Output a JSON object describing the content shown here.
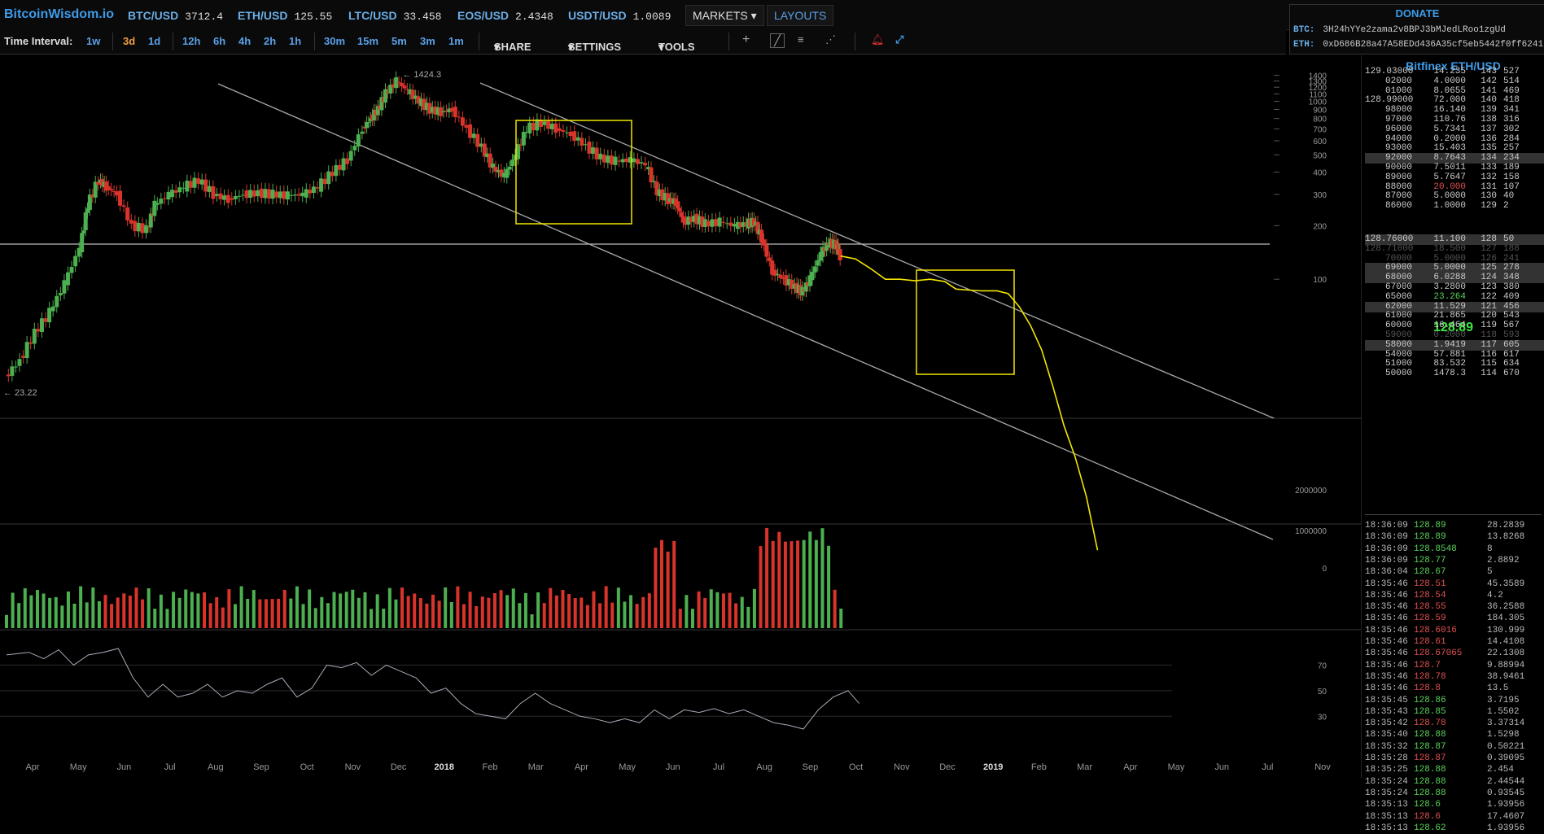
{
  "header": {
    "logo": "BitcoinWisdom.io",
    "tickers": [
      {
        "symbol": "BTC/USD",
        "price": "3712.4"
      },
      {
        "symbol": "ETH/USD",
        "price": "125.55"
      },
      {
        "symbol": "LTC/USD",
        "price": "33.458"
      },
      {
        "symbol": "EOS/USD",
        "price": "2.4348"
      },
      {
        "symbol": "USDT/USD",
        "price": "1.0089"
      }
    ],
    "markets_label": "MARKETS",
    "layouts_label": "LAYOUTS"
  },
  "donate": {
    "title": "DONATE",
    "btc_label": "BTC:",
    "btc_address": "3H24hYYe2zama2v8BPJ3bMJedLRoo1zgUd",
    "eth_label": "ETH:",
    "eth_address": "0xD686B28a47A58EDd436A35cf5eb5442f0ff6241"
  },
  "toolbar": {
    "time_interval_label": "Time Interval:",
    "intervals": [
      "1w",
      "3d",
      "1d",
      "12h",
      "6h",
      "4h",
      "2h",
      "1h",
      "30m",
      "15m",
      "5m",
      "3m",
      "1m"
    ],
    "active_interval": "3d",
    "share_label": "SHARE",
    "settings_label": "SETTINGS",
    "tools_label": "TOOLS"
  },
  "chart_data": {
    "type": "candlestick",
    "scale": "log",
    "high_label": "1424.3",
    "low_label": "23.22",
    "price_ticks": [
      "1400",
      "1300",
      "1200",
      "1100",
      "1000",
      "900",
      "800",
      "700",
      "600",
      "500",
      "400",
      "300",
      "200",
      "100"
    ],
    "volume_ticks": [
      "2000000",
      "1000000",
      "0"
    ],
    "rsi_ticks": [
      "70",
      "50",
      "30"
    ],
    "x_labels": [
      "Apr",
      "May",
      "Jun",
      "Jul",
      "Aug",
      "Sep",
      "Oct",
      "Nov",
      "Dec",
      "2018",
      "Feb",
      "Mar",
      "Apr",
      "May",
      "Jun",
      "Jul",
      "Aug",
      "Sep",
      "Oct",
      "Nov",
      "Dec",
      "2019",
      "Feb",
      "Mar",
      "Apr",
      "May",
      "Jun",
      "Jul",
      "Nov"
    ],
    "price_path": [
      [
        0.0,
        28
      ],
      [
        0.2,
        35
      ],
      [
        0.4,
        50
      ],
      [
        0.6,
        65
      ],
      [
        0.8,
        95
      ],
      [
        1.0,
        150
      ],
      [
        1.1,
        260
      ],
      [
        1.25,
        360
      ],
      [
        1.35,
        330
      ],
      [
        1.5,
        300
      ],
      [
        1.7,
        200
      ],
      [
        1.9,
        190
      ],
      [
        2.0,
        260
      ],
      [
        2.2,
        300
      ],
      [
        2.4,
        330
      ],
      [
        2.6,
        360
      ],
      [
        2.8,
        300
      ],
      [
        3.0,
        280
      ],
      [
        3.2,
        300
      ],
      [
        3.4,
        305
      ],
      [
        3.6,
        300
      ],
      [
        3.8,
        295
      ],
      [
        4.0,
        300
      ],
      [
        4.2,
        330
      ],
      [
        4.4,
        400
      ],
      [
        4.6,
        470
      ],
      [
        4.8,
        700
      ],
      [
        4.9,
        800
      ],
      [
        5.0,
        900
      ],
      [
        5.1,
        1100
      ],
      [
        5.25,
        1300
      ],
      [
        5.4,
        1150
      ],
      [
        5.55,
        1000
      ],
      [
        5.7,
        900
      ],
      [
        5.85,
        870
      ],
      [
        6.0,
        900
      ],
      [
        6.2,
        700
      ],
      [
        6.4,
        550
      ],
      [
        6.55,
        420
      ],
      [
        6.7,
        380
      ],
      [
        6.85,
        500
      ],
      [
        7.0,
        700
      ],
      [
        7.2,
        760
      ],
      [
        7.4,
        700
      ],
      [
        7.6,
        650
      ],
      [
        7.8,
        560
      ],
      [
        8.0,
        480
      ],
      [
        8.2,
        460
      ],
      [
        8.4,
        470
      ],
      [
        8.6,
        440
      ],
      [
        8.75,
        310
      ],
      [
        8.9,
        280
      ],
      [
        9.0,
        270
      ],
      [
        9.1,
        210
      ],
      [
        9.25,
        220
      ],
      [
        9.4,
        205
      ],
      [
        9.6,
        210
      ],
      [
        9.8,
        200
      ],
      [
        9.95,
        205
      ],
      [
        10.05,
        210
      ],
      [
        10.15,
        170
      ],
      [
        10.3,
        110
      ],
      [
        10.45,
        100
      ],
      [
        10.6,
        90
      ],
      [
        10.7,
        85
      ],
      [
        10.8,
        100
      ],
      [
        10.95,
        140
      ],
      [
        11.05,
        160
      ],
      [
        11.15,
        155
      ],
      [
        11.2,
        135
      ]
    ],
    "projection_path": [
      [
        11.2,
        135
      ],
      [
        11.4,
        130
      ],
      [
        11.6,
        115
      ],
      [
        11.8,
        100
      ],
      [
        12.0,
        100
      ],
      [
        12.2,
        98
      ],
      [
        12.4,
        100
      ],
      [
        12.6,
        97
      ],
      [
        12.75,
        88
      ],
      [
        12.9,
        87
      ],
      [
        13.1,
        86
      ],
      [
        13.3,
        86
      ],
      [
        13.45,
        83
      ],
      [
        13.6,
        70
      ],
      [
        13.75,
        55
      ],
      [
        13.9,
        40
      ],
      [
        14.05,
        25
      ],
      [
        14.2,
        15
      ],
      [
        14.35,
        10
      ],
      [
        14.5,
        6
      ],
      [
        14.65,
        3
      ]
    ],
    "rsi_path": [
      [
        0,
        78
      ],
      [
        0.3,
        80
      ],
      [
        0.5,
        75
      ],
      [
        0.7,
        82
      ],
      [
        0.9,
        70
      ],
      [
        1.1,
        78
      ],
      [
        1.3,
        80
      ],
      [
        1.5,
        83
      ],
      [
        1.7,
        60
      ],
      [
        1.9,
        45
      ],
      [
        2.1,
        55
      ],
      [
        2.3,
        45
      ],
      [
        2.5,
        48
      ],
      [
        2.7,
        55
      ],
      [
        2.9,
        45
      ],
      [
        3.1,
        50
      ],
      [
        3.3,
        48
      ],
      [
        3.5,
        55
      ],
      [
        3.7,
        60
      ],
      [
        3.9,
        45
      ],
      [
        4.1,
        52
      ],
      [
        4.3,
        70
      ],
      [
        4.5,
        68
      ],
      [
        4.7,
        72
      ],
      [
        4.9,
        62
      ],
      [
        5.1,
        70
      ],
      [
        5.3,
        65
      ],
      [
        5.5,
        60
      ],
      [
        5.7,
        48
      ],
      [
        5.9,
        52
      ],
      [
        6.1,
        40
      ],
      [
        6.3,
        32
      ],
      [
        6.5,
        30
      ],
      [
        6.7,
        28
      ],
      [
        6.9,
        40
      ],
      [
        7.1,
        48
      ],
      [
        7.3,
        40
      ],
      [
        7.5,
        35
      ],
      [
        7.7,
        30
      ],
      [
        7.9,
        28
      ],
      [
        8.1,
        25
      ],
      [
        8.3,
        28
      ],
      [
        8.5,
        25
      ],
      [
        8.7,
        35
      ],
      [
        8.9,
        28
      ],
      [
        9.1,
        35
      ],
      [
        9.3,
        33
      ],
      [
        9.5,
        36
      ],
      [
        9.7,
        32
      ],
      [
        9.9,
        35
      ],
      [
        10.1,
        30
      ],
      [
        10.3,
        25
      ],
      [
        10.5,
        23
      ],
      [
        10.7,
        20
      ],
      [
        10.9,
        35
      ],
      [
        11.1,
        45
      ],
      [
        11.3,
        50
      ],
      [
        11.45,
        40
      ]
    ]
  },
  "orderbook": {
    "title": "Bitfinex ETH/USD",
    "asks": [
      [
        "129.03000",
        "14.235",
        "143",
        "527"
      ],
      [
        "02000",
        "4.0000",
        "142",
        "514"
      ],
      [
        "01000",
        "8.0655",
        "141",
        "469"
      ],
      [
        "128.99000",
        "72.000",
        "140",
        "418"
      ],
      [
        "98000",
        "16.140",
        "139",
        "341"
      ],
      [
        "97000",
        "110.76",
        "138",
        "316"
      ],
      [
        "96000",
        "5.7341",
        "137",
        "302"
      ],
      [
        "94000",
        "0.2000",
        "136",
        "284"
      ],
      [
        "93000",
        "15.403",
        "135",
        "257"
      ],
      [
        "92000",
        "8.7643",
        "134",
        "234"
      ],
      [
        "90000",
        "7.5011",
        "133",
        "189"
      ],
      [
        "89000",
        "5.7647",
        "132",
        "158"
      ],
      [
        "88000",
        "20.000",
        "131",
        "107"
      ],
      [
        "87000",
        "5.0000",
        "130",
        "40"
      ],
      [
        "86000",
        "1.0000",
        "129",
        "2"
      ]
    ],
    "last_price": "128.89",
    "bids": [
      [
        "128.76000",
        "11.100",
        "128",
        "50"
      ],
      [
        "128.71000",
        "18.500",
        "127",
        "188"
      ],
      [
        "70000",
        "5.0000",
        "126",
        "241"
      ],
      [
        "69000",
        "5.0000",
        "125",
        "278"
      ],
      [
        "68000",
        "6.0288",
        "124",
        "348"
      ],
      [
        "67000",
        "3.2800",
        "123",
        "380"
      ],
      [
        "65000",
        "23.264",
        "122",
        "409"
      ],
      [
        "62000",
        "11.529",
        "121",
        "456"
      ],
      [
        "61000",
        "21.865",
        "120",
        "543"
      ],
      [
        "60000",
        "16.464",
        "119",
        "567"
      ],
      [
        "59000",
        "0.2000",
        "118",
        "593"
      ],
      [
        "58000",
        "1.9419",
        "117",
        "605"
      ],
      [
        "54000",
        "57.881",
        "116",
        "617"
      ],
      [
        "51000",
        "83.532",
        "115",
        "634"
      ],
      [
        "50000",
        "1478.3",
        "114",
        "670"
      ]
    ],
    "trades": [
      [
        "18:36:09",
        "128.89",
        "28.2839"
      ],
      [
        "18:36:09",
        "128.89",
        "13.8268"
      ],
      [
        "18:36:09",
        "128.8548",
        "8"
      ],
      [
        "18:36:09",
        "128.77",
        "2.8892"
      ],
      [
        "18:36:04",
        "128.67",
        "5"
      ],
      [
        "18:35:46",
        "128.51",
        "45.3589"
      ],
      [
        "18:35:46",
        "128.54",
        "4.2"
      ],
      [
        "18:35:46",
        "128.55",
        "36.2588"
      ],
      [
        "18:35:46",
        "128.59",
        "184.305"
      ],
      [
        "18:35:46",
        "128.6016",
        "130.999"
      ],
      [
        "18:35:46",
        "128.61",
        "14.4108"
      ],
      [
        "18:35:46",
        "128.67065",
        "22.1308"
      ],
      [
        "18:35:46",
        "128.7",
        "9.88994"
      ],
      [
        "18:35:46",
        "128.78",
        "38.9461"
      ],
      [
        "18:35:46",
        "128.8",
        "13.5"
      ],
      [
        "18:35:45",
        "128.86",
        "3.7195"
      ],
      [
        "18:35:43",
        "128.85",
        "1.5502"
      ],
      [
        "18:35:42",
        "128.78",
        "3.37314"
      ],
      [
        "18:35:40",
        "128.88",
        "1.5298"
      ],
      [
        "18:35:32",
        "128.87",
        "0.50221"
      ],
      [
        "18:35:28",
        "128.87",
        "0.39095"
      ],
      [
        "18:35:25",
        "128.88",
        "2.454"
      ],
      [
        "18:35:24",
        "128.88",
        "2.44544"
      ],
      [
        "18:35:24",
        "128.88",
        "0.93545"
      ],
      [
        "18:35:13",
        "128.6",
        "1.93956"
      ],
      [
        "18:35:13",
        "128.6",
        "17.4607"
      ],
      [
        "18:35:13",
        "128.62",
        "1.93956"
      ]
    ]
  }
}
